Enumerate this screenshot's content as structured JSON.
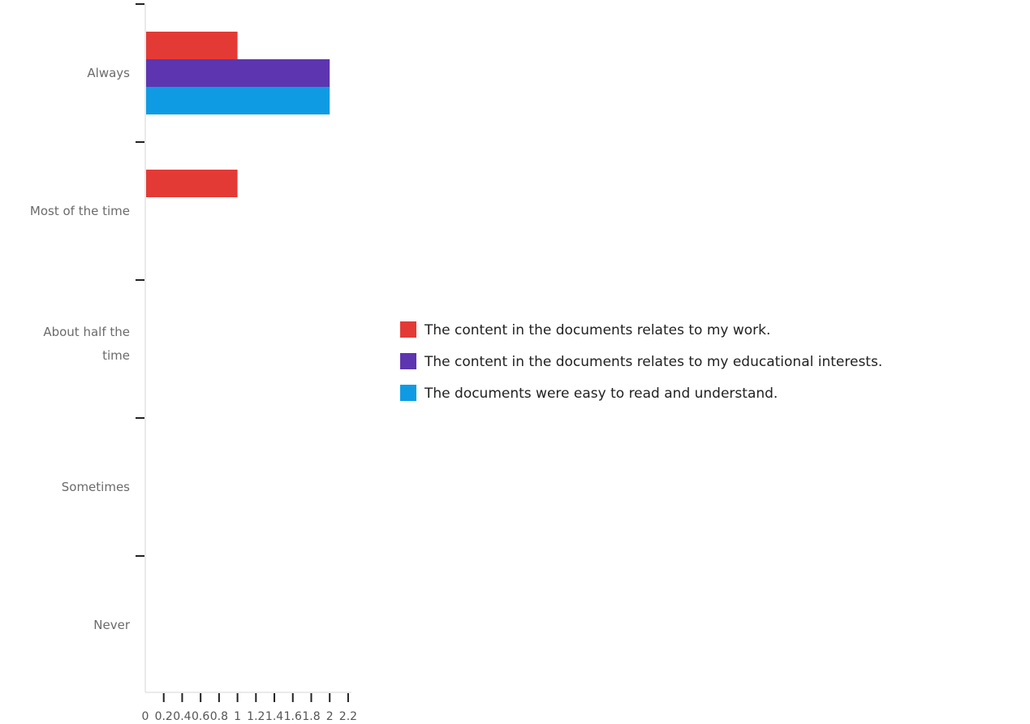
{
  "chart_data": {
    "type": "bar",
    "orientation": "horizontal",
    "categories": [
      "Always",
      "Most of the time",
      "About half the time",
      "Sometimes",
      "Never"
    ],
    "series": [
      {
        "name": "The content in the documents relates to my work.",
        "color": "#e43a36",
        "values": [
          1,
          1,
          0,
          0,
          0
        ]
      },
      {
        "name": "The content in the documents relates to my educational interests.",
        "color": "#5d35b0",
        "values": [
          2,
          0,
          0,
          0,
          0
        ]
      },
      {
        "name": "The documents were easy to read and understand.",
        "color": "#0e9be4",
        "values": [
          2,
          0,
          0,
          0,
          0
        ]
      }
    ],
    "x_ticks": [
      "0",
      "0.2",
      "0.4",
      "0.6",
      "0.8",
      "1",
      "1.2",
      "1.4",
      "1.6",
      "1.8",
      "2",
      "2.2"
    ],
    "xlim": [
      0,
      2.2
    ],
    "legend_position": "right",
    "grid": false
  }
}
